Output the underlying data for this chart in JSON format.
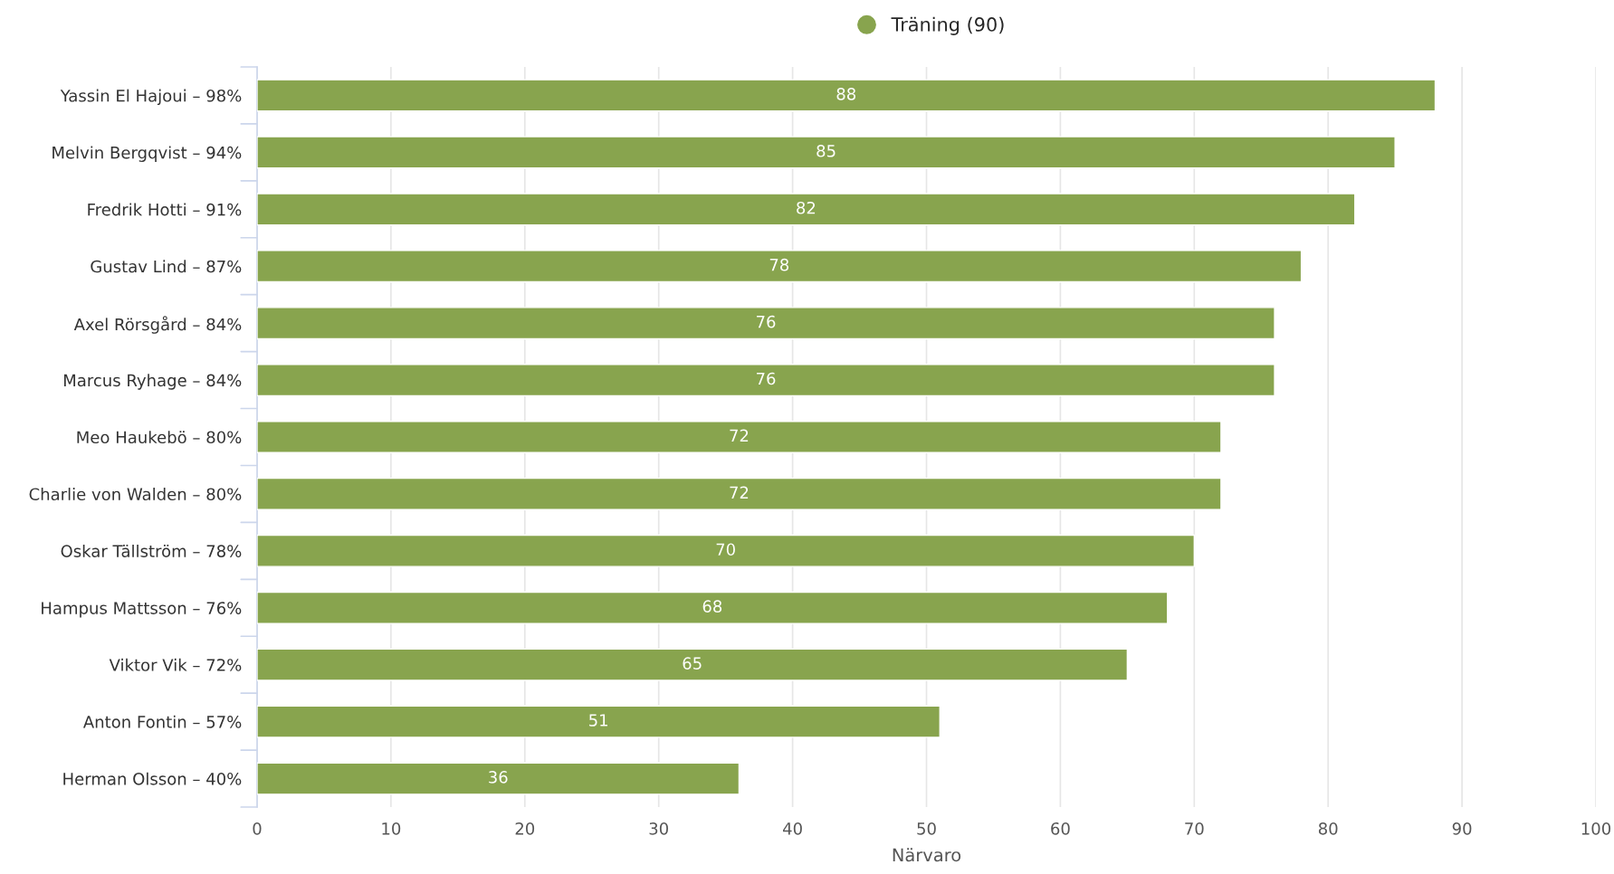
{
  "chart_data": {
    "type": "bar",
    "orientation": "horizontal",
    "categories": [
      "Yassin El Hajoui – 98%",
      "Melvin Bergqvist – 94%",
      "Fredrik Hotti – 91%",
      "Gustav Lind – 87%",
      "Axel Rörsgård – 84%",
      "Marcus Ryhage – 84%",
      "Meo Haukebö – 80%",
      "Charlie von Walden – 80%",
      "Oskar Tällström – 78%",
      "Hampus Mattsson – 76%",
      "Viktor Vik – 72%",
      "Anton Fontin – 57%",
      "Herman Olsson – 40%"
    ],
    "series": [
      {
        "name": "Träning (90)",
        "color": "#88a44e",
        "values": [
          88,
          85,
          82,
          78,
          76,
          76,
          72,
          72,
          70,
          68,
          65,
          51,
          36
        ]
      }
    ],
    "xlabel": "Närvaro",
    "xlim": [
      0,
      100
    ],
    "xticks": [
      0,
      10,
      20,
      30,
      40,
      50,
      60,
      70,
      80,
      90,
      100
    ],
    "grid": "x",
    "legend": "top",
    "data_labels": true
  }
}
